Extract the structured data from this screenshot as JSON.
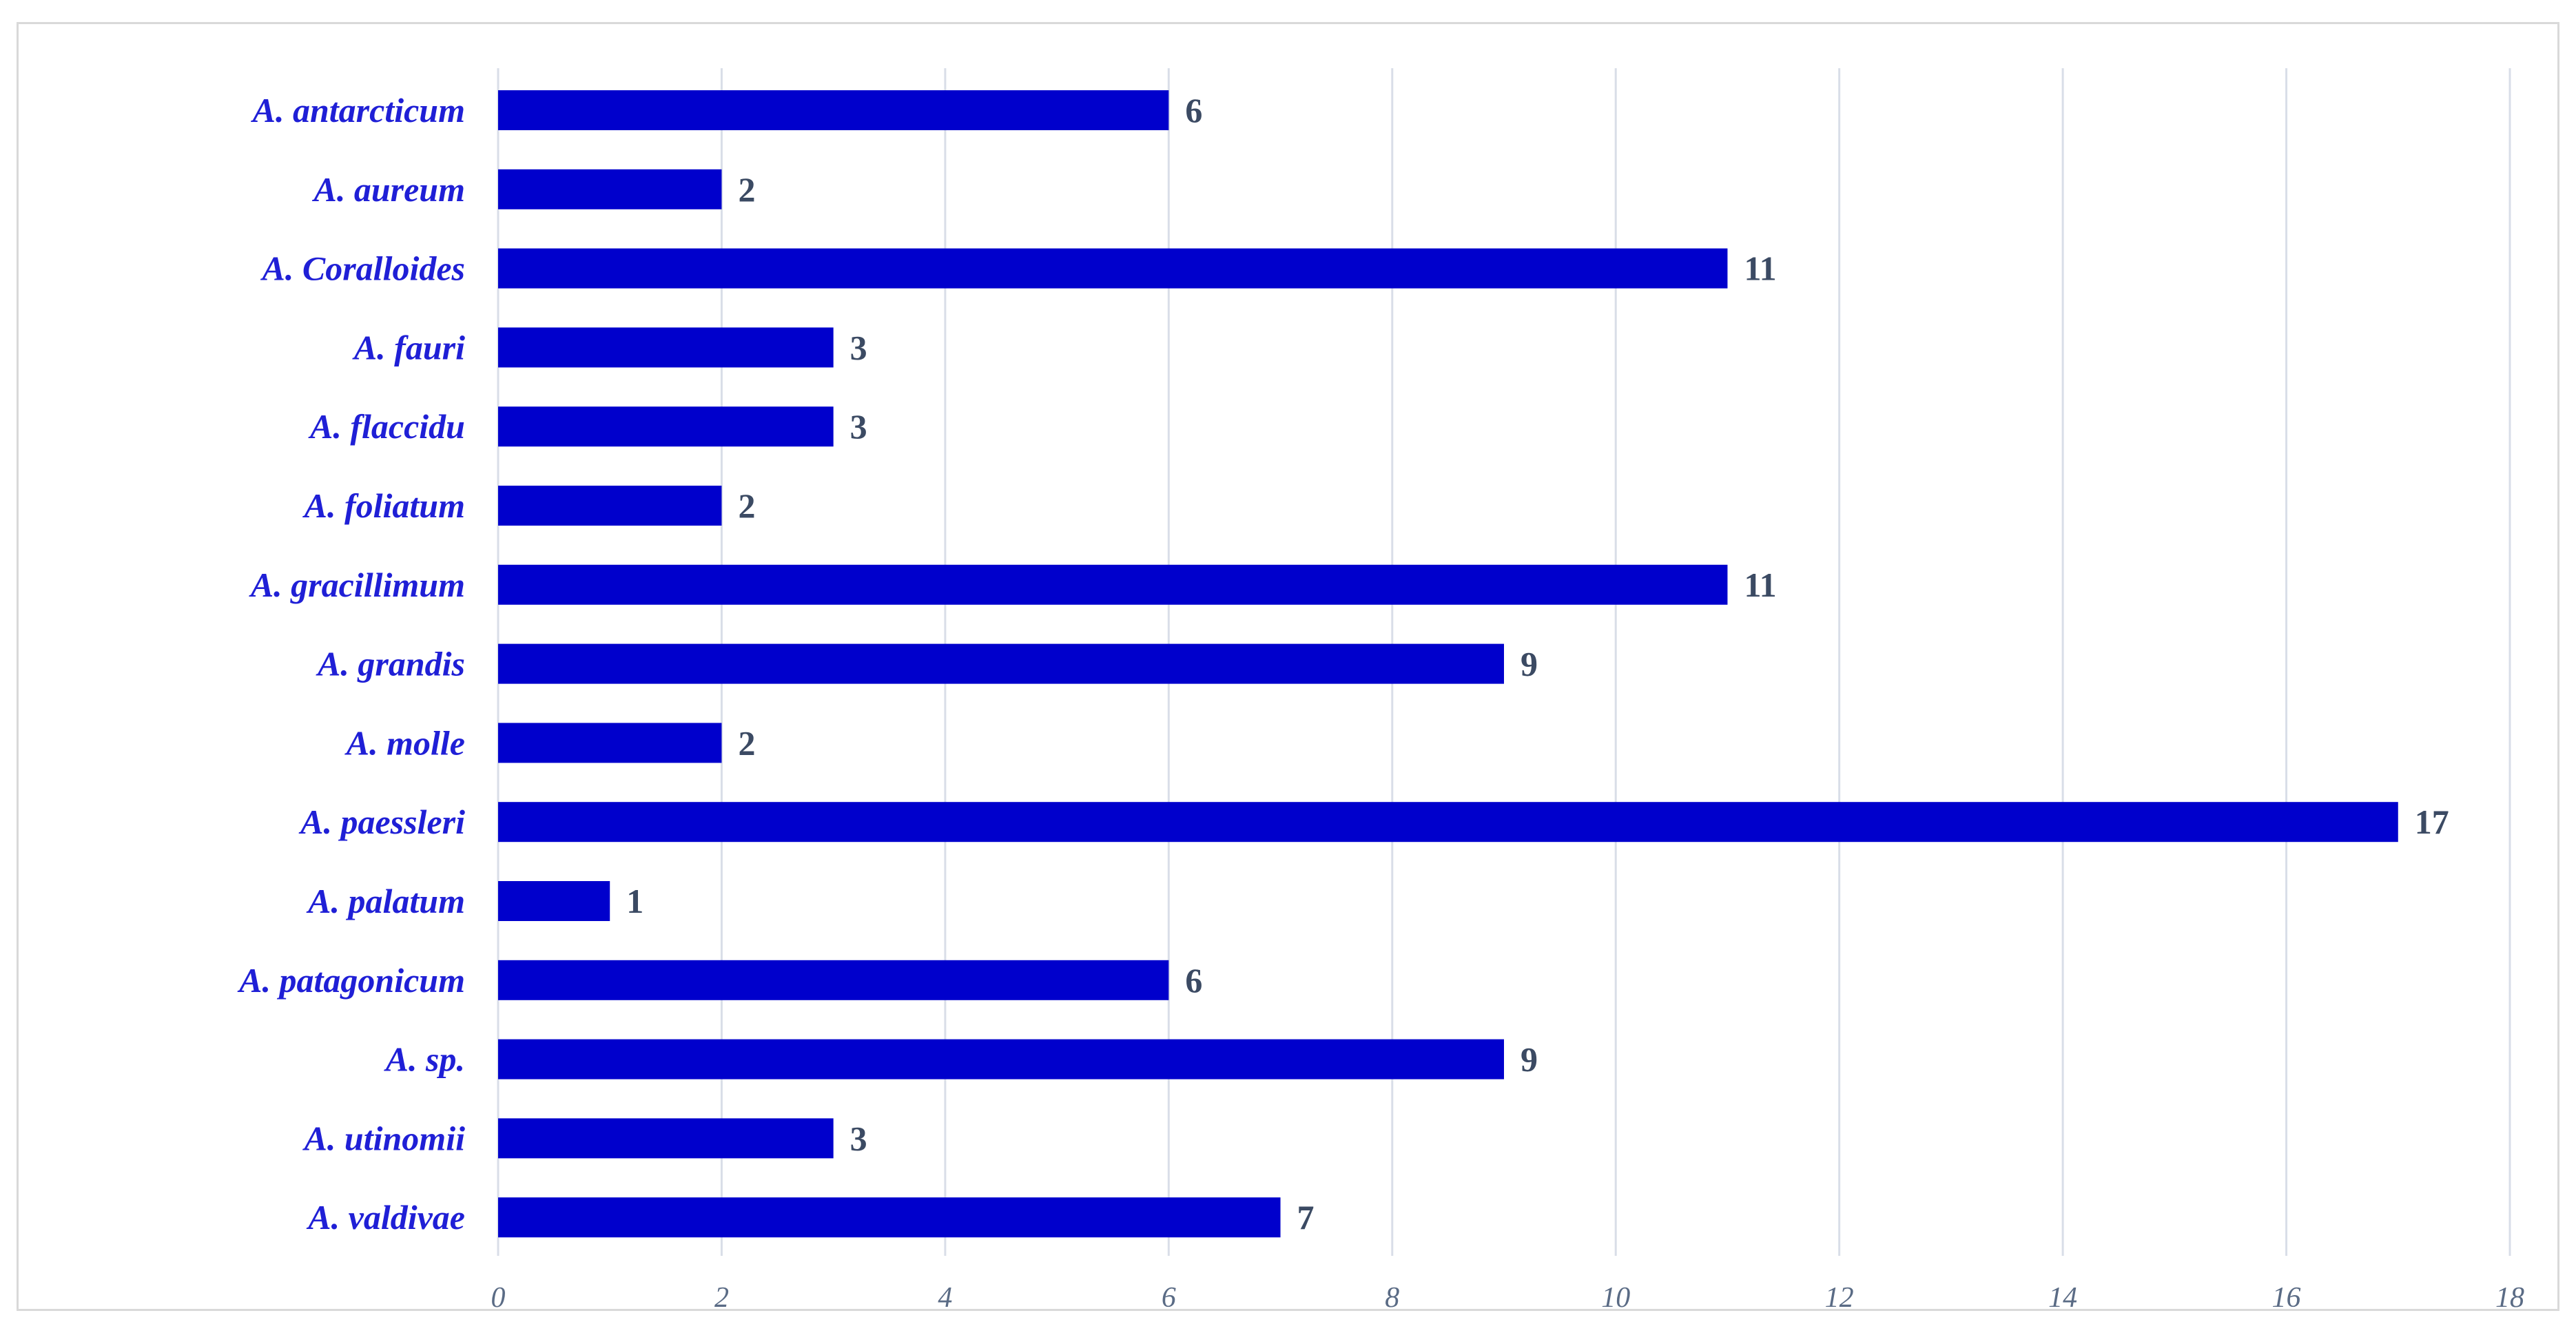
{
  "colors": {
    "bar": "#0000cc",
    "category_text": "#1f1fd6",
    "value_text": "#3b4a63",
    "tick_text": "#5a6b85",
    "grid": "#d9dee8",
    "frame": "#d9d9d9"
  },
  "chart_data": {
    "type": "bar",
    "orientation": "horizontal",
    "categories": [
      "A. antarcticum",
      "A. aureum",
      "A. Coralloides",
      "A. fauri",
      "A. flaccidu",
      "A. foliatum",
      "A. gracillimum",
      "A. grandis",
      "A. molle",
      "A. paessleri",
      "A. palatum",
      "A. patagonicum",
      "A. sp.",
      "A. utinomii",
      "A. valdivae"
    ],
    "values": [
      6,
      2,
      11,
      3,
      3,
      2,
      11,
      9,
      2,
      17,
      1,
      6,
      9,
      3,
      7
    ],
    "data_labels": [
      "6",
      "2",
      "11",
      "3",
      "3",
      "2",
      "11",
      "9",
      "2",
      "17",
      "1",
      "6",
      "9",
      "3",
      "7"
    ],
    "title": "",
    "xlabel": "",
    "ylabel": "",
    "xlim": [
      0,
      18
    ],
    "x_ticks": [
      0,
      2,
      4,
      6,
      8,
      10,
      12,
      14,
      16,
      18
    ],
    "x_tick_labels": [
      "0",
      "2",
      "4",
      "6",
      "8",
      "10",
      "12",
      "14",
      "16",
      "18"
    ],
    "grid": "vertical",
    "legend": "none"
  }
}
